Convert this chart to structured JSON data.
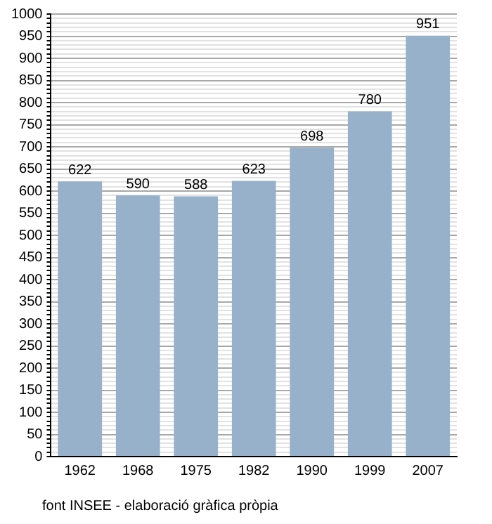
{
  "chart_data": {
    "type": "bar",
    "categories": [
      "1962",
      "1968",
      "1975",
      "1982",
      "1990",
      "1999",
      "2007"
    ],
    "values": [
      622,
      590,
      588,
      623,
      698,
      780,
      951
    ],
    "color": "#97b1ca",
    "data_labels": true,
    "grid": "y",
    "ylim": [
      0,
      1000
    ],
    "yticks": [
      0,
      {
        "value": 10,
        "label": null
      },
      {
        "value": 20,
        "label": null
      },
      {
        "value": 30,
        "label": null
      },
      {
        "value": 40,
        "label": null
      },
      50,
      {
        "value": 60,
        "label": null
      },
      {
        "value": 70,
        "label": null
      },
      {
        "value": 80,
        "label": null
      },
      {
        "value": 90,
        "label": null
      },
      100,
      {
        "value": 110,
        "label": null
      },
      {
        "value": 120,
        "label": null
      },
      {
        "value": 130,
        "label": null
      },
      {
        "value": 140,
        "label": null
      },
      150,
      {
        "value": 160,
        "label": null
      },
      {
        "value": 170,
        "label": null
      },
      {
        "value": 180,
        "label": null
      },
      {
        "value": 190,
        "label": null
      },
      200,
      {
        "value": 210,
        "label": null
      },
      {
        "value": 220,
        "label": null
      },
      {
        "value": 230,
        "label": null
      },
      {
        "value": 240,
        "label": null
      },
      250,
      {
        "value": 260,
        "label": null
      },
      {
        "value": 270,
        "label": null
      },
      {
        "value": 280,
        "label": null
      },
      {
        "value": 290,
        "label": null
      },
      300,
      {
        "value": 310,
        "label": null
      },
      {
        "value": 320,
        "label": null
      },
      {
        "value": 330,
        "label": null
      },
      {
        "value": 340,
        "label": null
      },
      350,
      {
        "value": 360,
        "label": null
      },
      {
        "value": 370,
        "label": null
      },
      {
        "value": 380,
        "label": null
      },
      {
        "value": 390,
        "label": null
      },
      400,
      {
        "value": 410,
        "label": null
      },
      {
        "value": 420,
        "label": null
      },
      {
        "value": 430,
        "label": null
      },
      {
        "value": 440,
        "label": null
      },
      450,
      {
        "value": 460,
        "label": null
      },
      {
        "value": 470,
        "label": null
      },
      {
        "value": 480,
        "label": null
      },
      {
        "value": 490,
        "label": null
      },
      500,
      {
        "value": 510,
        "label": null
      },
      {
        "value": 520,
        "label": null
      },
      {
        "value": 530,
        "label": null
      },
      {
        "value": 540,
        "label": null
      },
      550,
      {
        "value": 560,
        "label": null
      },
      {
        "value": 570,
        "label": null
      },
      {
        "value": 580,
        "label": null
      },
      {
        "value": 590,
        "label": null
      },
      600,
      {
        "value": 610,
        "label": null
      },
      {
        "value": 620,
        "label": null
      },
      {
        "value": 630,
        "label": null
      },
      {
        "value": 640,
        "label": null
      },
      650,
      {
        "value": 660,
        "label": null
      },
      {
        "value": 670,
        "label": null
      },
      {
        "value": 680,
        "label": null
      },
      {
        "value": 690,
        "label": null
      },
      700,
      {
        "value": 710,
        "label": null
      },
      {
        "value": 720,
        "label": null
      },
      {
        "value": 730,
        "label": null
      },
      {
        "value": 740,
        "label": null
      },
      750,
      {
        "value": 760,
        "label": null
      },
      {
        "value": 770,
        "label": null
      },
      {
        "value": 780,
        "label": null
      },
      {
        "value": 790,
        "label": null
      },
      800,
      {
        "value": 810,
        "label": null
      },
      {
        "value": 820,
        "label": null
      },
      {
        "value": 830,
        "label": null
      },
      {
        "value": 840,
        "label": null
      },
      850,
      {
        "value": 860,
        "label": null
      },
      {
        "value": 870,
        "label": null
      },
      {
        "value": 880,
        "label": null
      },
      {
        "value": 890,
        "label": null
      },
      900,
      {
        "value": 910,
        "label": null
      },
      {
        "value": 920,
        "label": null
      },
      {
        "value": 930,
        "label": null
      },
      {
        "value": 940,
        "label": null
      },
      950,
      {
        "value": 960,
        "label": null
      },
      {
        "value": 970,
        "label": null
      },
      {
        "value": 980,
        "label": null
      },
      {
        "value": 990,
        "label": null
      },
      1000
    ],
    "annotations": [
      "font INSEE - elaboració gràfica pròpia"
    ]
  }
}
